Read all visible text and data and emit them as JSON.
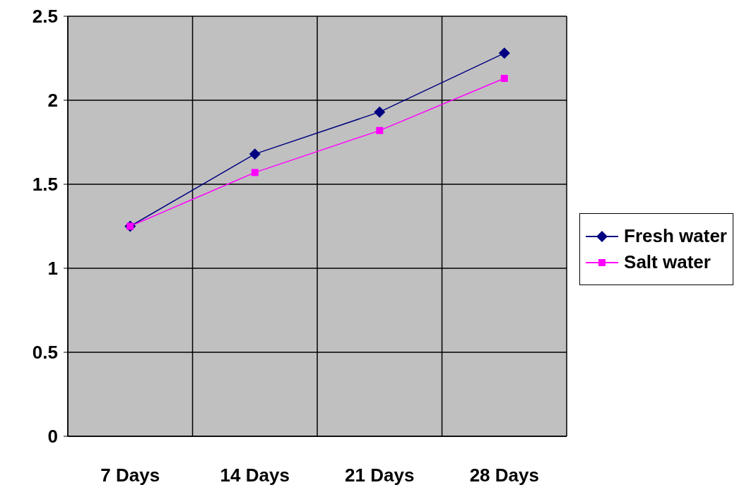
{
  "chart_data": {
    "type": "line",
    "categories": [
      "7 Days",
      "14 Days",
      "21 Days",
      "28 Days"
    ],
    "series": [
      {
        "name": "Fresh water",
        "color": "#000080",
        "marker": "diamond",
        "values": [
          1.25,
          1.68,
          1.93,
          2.28
        ]
      },
      {
        "name": "Salt water",
        "color": "#ff00ff",
        "marker": "square",
        "values": [
          1.25,
          1.57,
          1.82,
          2.13
        ]
      }
    ],
    "ylim": [
      0,
      2.5
    ],
    "yticks": [
      0,
      0.5,
      1,
      1.5,
      2,
      2.5
    ],
    "grid": true,
    "legend": "right"
  }
}
